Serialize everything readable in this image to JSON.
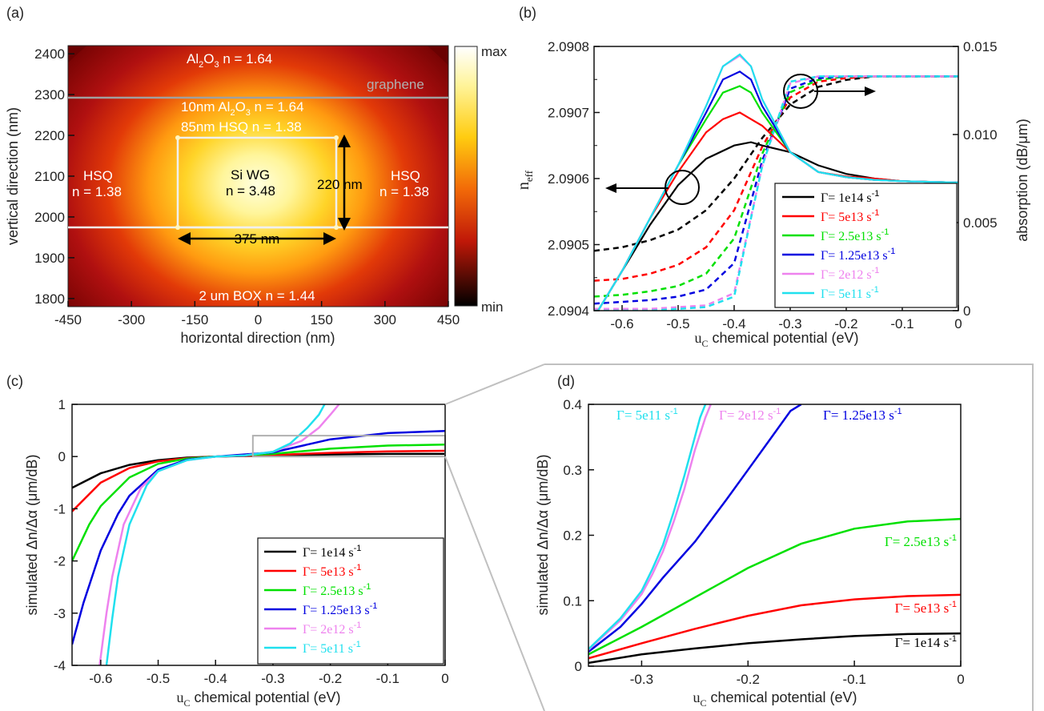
{
  "panels": {
    "a": {
      "label": "(a)",
      "xlabel": "horizontal direction (nm)",
      "ylabel": "vertical direction (nm)",
      "xticks": [
        "-450",
        "-300",
        "-150",
        "0",
        "150",
        "300",
        "450"
      ],
      "yticks": [
        "1800",
        "1900",
        "2000",
        "2100",
        "2200",
        "2300",
        "2400"
      ],
      "colorbar": {
        "max": "max",
        "min": "min"
      },
      "labels": {
        "al2o3_top": {
          "pre": "Al",
          "sub": "2",
          "mid": "O",
          "sub2": "3",
          "post": " n = 1.64"
        },
        "graphene": "graphene",
        "al2o3_thin": {
          "pre": "10nm Al",
          "sub": "2",
          "mid": "O",
          "sub2": "3",
          "post": " n = 1.64"
        },
        "hsq_top": "85nm HSQ n = 1.38",
        "hsq_left_1": "HSQ",
        "hsq_left_2": "n = 1.38",
        "hsq_right_1": "HSQ",
        "hsq_right_2": "n = 1.38",
        "si_1": "Si WG",
        "si_2": "n = 3.48",
        "height": "220 nm",
        "width": "375 nm",
        "box": "2 um BOX n = 1.44"
      }
    },
    "b": {
      "label": "(b)",
      "xlabel": "chemical potential (eV)",
      "xlabel_sym": "u",
      "xlabel_sub": "C",
      "ylabel_left": "n",
      "ylabel_left_sub": "eff",
      "ylabel_right": "absorption (dB/μm)",
      "xticks": [
        "-0.6",
        "-0.5",
        "-0.4",
        "-0.3",
        "-0.2",
        "-0.1",
        "0"
      ],
      "yticks_left": [
        "2.0904",
        "2.0905",
        "2.0906",
        "2.0907",
        "2.0908"
      ],
      "yticks_right": [
        "0",
        "0.005",
        "0.010",
        "0.015"
      ]
    },
    "c": {
      "label": "(c)",
      "xlabel": "chemical potential (eV)",
      "xlabel_sym": "u",
      "xlabel_sub": "C",
      "ylabel": "simulated Δn/Δα (μm/dB)",
      "xticks": [
        "-0.6",
        "-0.5",
        "-0.4",
        "-0.3",
        "-0.2",
        "-0.1",
        "0"
      ],
      "yticks": [
        "-4",
        "-3",
        "-2",
        "-1",
        "0",
        "1"
      ]
    },
    "d": {
      "label": "(d)",
      "xlabel": "chemical potential (eV)",
      "xlabel_sym": "u",
      "xlabel_sub": "C",
      "ylabel": "simulated Δn/Δα (μm/dB)",
      "xticks": [
        "-0.3",
        "-0.2",
        "-0.1",
        "0"
      ],
      "yticks": [
        "0",
        "0.1",
        "0.2",
        "0.3",
        "0.4"
      ]
    }
  },
  "legend": [
    {
      "name": "Γ= 1e14 s",
      "sup": "-1",
      "color": "#000000"
    },
    {
      "name": "Γ= 5e13 s",
      "sup": "-1",
      "color": "#ff0000"
    },
    {
      "name": "Γ= 2.5e13 s",
      "sup": "-1",
      "color": "#00e000"
    },
    {
      "name": "Γ= 1.25e13 s",
      "sup": "-1",
      "color": "#0000e0"
    },
    {
      "name": "Γ= 2e12 s",
      "sup": "-1",
      "color": "#ee82ee"
    },
    {
      "name": "Γ= 5e11 s",
      "sup": "-1",
      "color": "#20e0ee"
    }
  ],
  "chart_data": [
    {
      "type": "heatmap",
      "panel": "a",
      "xlabel": "horizontal direction (nm)",
      "ylabel": "vertical direction (nm)",
      "xlim": [
        -450,
        450
      ],
      "ylim": [
        1780,
        2420
      ],
      "colormap": "black-red-yellow-white",
      "waveguide": {
        "x": [
          -187.5,
          187.5
        ],
        "y": [
          1990,
          2210
        ]
      },
      "graphene_y": 2305,
      "box_top_y": 1990
    },
    {
      "type": "line",
      "panel": "b",
      "xlim": [
        -0.65,
        0
      ],
      "ylim_left": [
        2.0904,
        2.0908
      ],
      "ylim_right": [
        0,
        0.015
      ],
      "series_neff": [
        {
          "gamma": "1e14",
          "x": [
            -0.65,
            -0.6,
            -0.55,
            -0.5,
            -0.45,
            -0.4,
            -0.37,
            -0.35,
            -0.3,
            -0.25,
            -0.2,
            -0.15,
            -0.1,
            -0.05,
            0
          ],
          "y": [
            2.09039,
            2.09046,
            2.09053,
            2.09059,
            2.09063,
            2.09065,
            2.090655,
            2.09065,
            2.09064,
            2.09062,
            2.090607,
            2.0906,
            2.090596,
            2.090595,
            2.090594
          ]
        },
        {
          "gamma": "5e13",
          "x": [
            -0.65,
            -0.6,
            -0.55,
            -0.5,
            -0.45,
            -0.42,
            -0.39,
            -0.37,
            -0.35,
            -0.3,
            -0.25,
            -0.2,
            -0.15,
            -0.1,
            0
          ],
          "y": [
            2.09039,
            2.09046,
            2.09054,
            2.09061,
            2.09067,
            2.09069,
            2.0907,
            2.09069,
            2.09068,
            2.09064,
            2.09061,
            2.090603,
            2.0906,
            2.090596,
            2.090594
          ]
        },
        {
          "gamma": "2.5e13",
          "x": [
            -0.65,
            -0.6,
            -0.55,
            -0.5,
            -0.45,
            -0.42,
            -0.39,
            -0.37,
            -0.35,
            -0.3,
            -0.25,
            -0.2,
            -0.15,
            -0.1,
            0
          ],
          "y": [
            2.09039,
            2.09046,
            2.09054,
            2.09062,
            2.09069,
            2.09073,
            2.09074,
            2.09073,
            2.0907,
            2.09064,
            2.09061,
            2.090602,
            2.090598,
            2.090596,
            2.090594
          ]
        },
        {
          "gamma": "1.25e13",
          "x": [
            -0.65,
            -0.6,
            -0.55,
            -0.5,
            -0.45,
            -0.42,
            -0.39,
            -0.37,
            -0.35,
            -0.3,
            -0.25,
            -0.2,
            -0.15,
            -0.1,
            0
          ],
          "y": [
            2.09039,
            2.09046,
            2.09054,
            2.09062,
            2.0907,
            2.09075,
            2.090762,
            2.09075,
            2.09071,
            2.09064,
            2.09061,
            2.090602,
            2.090598,
            2.090596,
            2.090594
          ]
        },
        {
          "gamma": "2e12",
          "x": [
            -0.65,
            -0.6,
            -0.55,
            -0.5,
            -0.45,
            -0.42,
            -0.39,
            -0.37,
            -0.35,
            -0.3,
            -0.25,
            -0.2,
            -0.15,
            -0.1,
            0
          ],
          "y": [
            2.09039,
            2.09046,
            2.09054,
            2.09062,
            2.09071,
            2.09077,
            2.090786,
            2.09077,
            2.09072,
            2.09064,
            2.09061,
            2.090602,
            2.090598,
            2.090596,
            2.090594
          ]
        },
        {
          "gamma": "5e11",
          "x": [
            -0.65,
            -0.6,
            -0.55,
            -0.5,
            -0.45,
            -0.42,
            -0.39,
            -0.37,
            -0.35,
            -0.3,
            -0.25,
            -0.2,
            -0.15,
            -0.1,
            0
          ],
          "y": [
            2.09039,
            2.09046,
            2.09054,
            2.09062,
            2.09071,
            2.09077,
            2.090788,
            2.09077,
            2.09072,
            2.09064,
            2.09061,
            2.090602,
            2.090598,
            2.090596,
            2.090594
          ]
        }
      ],
      "series_absorption": [
        {
          "gamma": "1e14",
          "x": [
            -0.65,
            -0.6,
            -0.55,
            -0.5,
            -0.45,
            -0.4,
            -0.35,
            -0.3,
            -0.25,
            -0.2,
            -0.15,
            -0.1,
            -0.05,
            0
          ],
          "y": [
            0.0034,
            0.0036,
            0.004,
            0.0046,
            0.0057,
            0.0075,
            0.0098,
            0.0117,
            0.0127,
            0.0131,
            0.0133,
            0.0133,
            0.0133,
            0.0133
          ]
        },
        {
          "gamma": "5e13",
          "x": [
            -0.65,
            -0.6,
            -0.55,
            -0.5,
            -0.45,
            -0.4,
            -0.35,
            -0.3,
            -0.25,
            -0.2,
            -0.15,
            -0.1,
            -0.05,
            0
          ],
          "y": [
            0.0017,
            0.0018,
            0.0021,
            0.0026,
            0.0036,
            0.0057,
            0.0093,
            0.0121,
            0.013,
            0.0132,
            0.0133,
            0.0133,
            0.0133,
            0.0133
          ]
        },
        {
          "gamma": "2.5e13",
          "x": [
            -0.65,
            -0.6,
            -0.55,
            -0.5,
            -0.45,
            -0.4,
            -0.35,
            -0.3,
            -0.25,
            -0.2,
            -0.15,
            -0.1,
            -0.05,
            0
          ],
          "y": [
            0.0008,
            0.0009,
            0.0011,
            0.0014,
            0.0021,
            0.0041,
            0.0089,
            0.0124,
            0.0131,
            0.0133,
            0.0133,
            0.0133,
            0.0133,
            0.0133
          ]
        },
        {
          "gamma": "1.25e13",
          "x": [
            -0.65,
            -0.6,
            -0.55,
            -0.5,
            -0.45,
            -0.4,
            -0.35,
            -0.3,
            -0.25,
            -0.2,
            -0.15,
            -0.1,
            -0.05,
            0
          ],
          "y": [
            0.0004,
            0.0005,
            0.0006,
            0.0008,
            0.0012,
            0.0027,
            0.0085,
            0.0126,
            0.0132,
            0.0133,
            0.0133,
            0.0133,
            0.0133,
            0.0133
          ]
        },
        {
          "gamma": "2e12",
          "x": [
            -0.65,
            -0.6,
            -0.55,
            -0.5,
            -0.45,
            -0.4,
            -0.35,
            -0.3,
            -0.25,
            -0.2,
            -0.15,
            -0.1,
            -0.05,
            0
          ],
          "y": [
            0.0001,
            0.0001,
            0.0001,
            0.0002,
            0.0003,
            0.001,
            0.0082,
            0.0129,
            0.0133,
            0.0133,
            0.0133,
            0.0133,
            0.0133,
            0.0133
          ]
        },
        {
          "gamma": "5e11",
          "x": [
            -0.65,
            -0.6,
            -0.55,
            -0.5,
            -0.45,
            -0.4,
            -0.35,
            -0.3,
            -0.25,
            -0.2,
            -0.15,
            -0.1,
            -0.05,
            0
          ],
          "y": [
            0.0,
            0.0,
            0.0,
            0.0001,
            0.0002,
            0.0008,
            0.0082,
            0.013,
            0.0133,
            0.0133,
            0.0133,
            0.0133,
            0.0133,
            0.0133
          ]
        }
      ]
    },
    {
      "type": "line",
      "panel": "c",
      "xlim": [
        -0.65,
        0
      ],
      "ylim": [
        -4,
        1
      ],
      "series": [
        {
          "gamma": "1e14",
          "x": [
            -0.65,
            -0.6,
            -0.55,
            -0.5,
            -0.45,
            -0.4,
            -0.3,
            -0.2,
            -0.1,
            0
          ],
          "y": [
            -0.6,
            -0.32,
            -0.16,
            -0.07,
            -0.02,
            0,
            0.02,
            0.04,
            0.05,
            0.05
          ]
        },
        {
          "gamma": "5e13",
          "x": [
            -0.65,
            -0.6,
            -0.55,
            -0.5,
            -0.45,
            -0.4,
            -0.3,
            -0.2,
            -0.1,
            0
          ],
          "y": [
            -1.05,
            -0.5,
            -0.22,
            -0.09,
            -0.03,
            0,
            0.03,
            0.07,
            0.1,
            0.11
          ]
        },
        {
          "gamma": "2.5e13",
          "x": [
            -0.65,
            -0.62,
            -0.6,
            -0.55,
            -0.5,
            -0.45,
            -0.4,
            -0.3,
            -0.2,
            -0.1,
            0
          ],
          "y": [
            -2.0,
            -1.3,
            -0.95,
            -0.4,
            -0.14,
            -0.04,
            0,
            0.05,
            0.15,
            0.21,
            0.23
          ]
        },
        {
          "gamma": "1.25e13",
          "x": [
            -0.65,
            -0.63,
            -0.6,
            -0.57,
            -0.55,
            -0.5,
            -0.45,
            -0.4,
            -0.3,
            -0.2,
            -0.1,
            0
          ],
          "y": [
            -3.6,
            -2.8,
            -1.8,
            -1.1,
            -0.75,
            -0.25,
            -0.06,
            0,
            0.08,
            0.33,
            0.45,
            0.49
          ]
        },
        {
          "gamma": "2e12",
          "x": [
            -0.602,
            -0.59,
            -0.58,
            -0.56,
            -0.53,
            -0.5,
            -0.45,
            -0.4,
            -0.35,
            -0.3,
            -0.25,
            -0.22,
            -0.2,
            -0.185
          ],
          "y": [
            -4.0,
            -3.0,
            -2.3,
            -1.3,
            -0.6,
            -0.28,
            -0.07,
            0,
            0.02,
            0.09,
            0.3,
            0.55,
            0.8,
            1.0
          ]
        },
        {
          "gamma": "5e11",
          "x": [
            -0.59,
            -0.58,
            -0.57,
            -0.55,
            -0.52,
            -0.5,
            -0.45,
            -0.4,
            -0.35,
            -0.3,
            -0.27,
            -0.24,
            -0.22,
            -0.21
          ],
          "y": [
            -4.0,
            -3.1,
            -2.3,
            -1.3,
            -0.55,
            -0.28,
            -0.07,
            0,
            0.02,
            0.09,
            0.25,
            0.55,
            0.8,
            1.0
          ]
        }
      ],
      "zoom_box": {
        "x": [
          -0.335,
          0
        ],
        "y": [
          0,
          0.4
        ]
      }
    },
    {
      "type": "line",
      "panel": "d",
      "xlim": [
        -0.35,
        0
      ],
      "ylim": [
        0,
        0.4
      ],
      "series": [
        {
          "gamma": "1e14",
          "x": [
            -0.35,
            -0.3,
            -0.25,
            -0.2,
            -0.15,
            -0.1,
            -0.05,
            0
          ],
          "y": [
            0.005,
            0.018,
            0.027,
            0.035,
            0.041,
            0.046,
            0.049,
            0.05
          ]
        },
        {
          "gamma": "5e13",
          "x": [
            -0.35,
            -0.3,
            -0.25,
            -0.2,
            -0.15,
            -0.1,
            -0.05,
            0
          ],
          "y": [
            0.012,
            0.035,
            0.057,
            0.077,
            0.093,
            0.102,
            0.107,
            0.109
          ]
        },
        {
          "gamma": "2.5e13",
          "x": [
            -0.35,
            -0.3,
            -0.25,
            -0.2,
            -0.15,
            -0.1,
            -0.05,
            0
          ],
          "y": [
            0.018,
            0.06,
            0.105,
            0.15,
            0.187,
            0.21,
            0.221,
            0.225
          ]
        },
        {
          "gamma": "1.25e13",
          "x": [
            -0.35,
            -0.32,
            -0.3,
            -0.28,
            -0.25,
            -0.22,
            -0.2,
            -0.18,
            -0.16,
            -0.15
          ],
          "y": [
            0.022,
            0.06,
            0.095,
            0.135,
            0.19,
            0.255,
            0.3,
            0.345,
            0.39,
            0.4
          ]
        },
        {
          "gamma": "2e12",
          "x": [
            -0.35,
            -0.32,
            -0.3,
            -0.29,
            -0.28,
            -0.27,
            -0.26,
            -0.25,
            -0.24,
            -0.235
          ],
          "y": [
            0.025,
            0.07,
            0.11,
            0.14,
            0.175,
            0.22,
            0.27,
            0.33,
            0.38,
            0.4
          ]
        },
        {
          "gamma": "5e11",
          "x": [
            -0.35,
            -0.32,
            -0.3,
            -0.29,
            -0.28,
            -0.27,
            -0.26,
            -0.25,
            -0.245,
            -0.24
          ],
          "y": [
            0.026,
            0.073,
            0.115,
            0.148,
            0.185,
            0.235,
            0.29,
            0.35,
            0.38,
            0.4
          ]
        }
      ]
    }
  ]
}
